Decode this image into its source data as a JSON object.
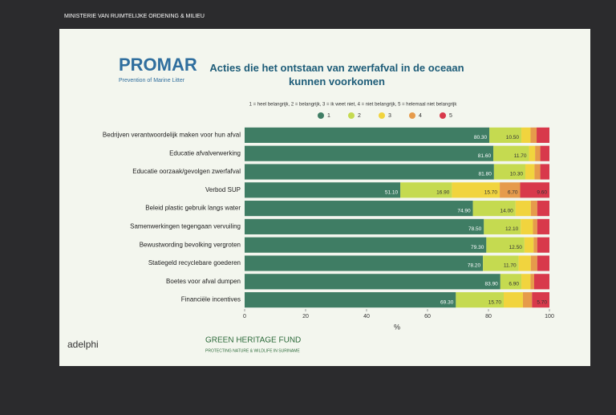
{
  "slide": {
    "brand": "PROMAR",
    "brand_tagline": "Prevention of Marine Litter",
    "ministry": "MINISTERIE VAN RUIMTELIJKE ORDENING & MILIEU",
    "footer_logos": [
      "adelphi",
      "GREEN HERITAGE FUND",
      "PROTECTING NATURE & WILDLIFE IN SURINAME"
    ]
  },
  "chart_data": {
    "type": "stacked-barh",
    "title": "Acties die het ontstaan van zwerfafval in de oceaan kunnen voorkomen",
    "subtitle": "1 = heel belangrijk, 2 = belangrijk, 3 = ik weet niet, 4 = niet belangrijk, 5 = helemaal niet belangrijk",
    "x_label": "%",
    "categories": [
      "Bedrijven verantwoordelijk maken voor hun afval",
      "Educatie afvalverwerking",
      "Educatie oorzaak/gevolgen zwerfafval",
      "Verbod SUP",
      "Beleid plastic gebruik langs water",
      "Samenwerkingen tegengaan vervuiling",
      "Bewustwording bevolking vergroten",
      "Statiegeld recyclebare goederen",
      "Boetes voor afval dumpen",
      "Financiële incentives"
    ],
    "series": [
      {
        "name": "1",
        "color": "#3f7d64",
        "values": [
          80.3,
          81.6,
          81.8,
          51.1,
          74.9,
          78.5,
          79.3,
          78.2,
          83.9,
          69.3
        ],
        "value_labels": [
          "80.30",
          "81.60",
          "81.80",
          "51.10",
          "74.90",
          "78.50",
          "79.30",
          "78.20",
          "83.90",
          "69.30"
        ]
      },
      {
        "name": "2",
        "color": "#c5da50",
        "values": [
          10.5,
          11.7,
          10.3,
          16.9,
          14.0,
          12.1,
          12.5,
          11.7,
          6.9,
          15.7
        ],
        "value_labels": [
          "10.50",
          "11.70",
          "10.30",
          "16.90",
          "14.00",
          "12.10",
          "12.50",
          "11.70",
          "6.90",
          "15.70"
        ]
      },
      {
        "name": "3",
        "color": "#f1d43e",
        "values": [
          3,
          2,
          3,
          15.7,
          5,
          4,
          3,
          4,
          3,
          6.3
        ],
        "value_labels": [
          null,
          null,
          null,
          "15.70",
          null,
          null,
          null,
          null,
          null,
          null
        ]
      },
      {
        "name": "4",
        "color": "#e69b4b",
        "values": [
          2,
          1.7,
          1.9,
          6.7,
          2.1,
          1.4,
          1.2,
          2.1,
          1.2,
          3
        ],
        "value_labels": [
          null,
          null,
          null,
          "6.70",
          null,
          null,
          null,
          null,
          null,
          null
        ]
      },
      {
        "name": "5",
        "color": "#d8394b",
        "values": [
          4.2,
          3,
          3,
          9.6,
          4,
          4,
          4,
          4,
          5,
          5.7
        ],
        "value_labels": [
          null,
          null,
          null,
          "9.60",
          null,
          null,
          null,
          null,
          null,
          "5.70"
        ]
      }
    ],
    "xlim": [
      0,
      100
    ],
    "xticks": [
      0,
      20,
      40,
      60,
      80,
      100
    ]
  }
}
